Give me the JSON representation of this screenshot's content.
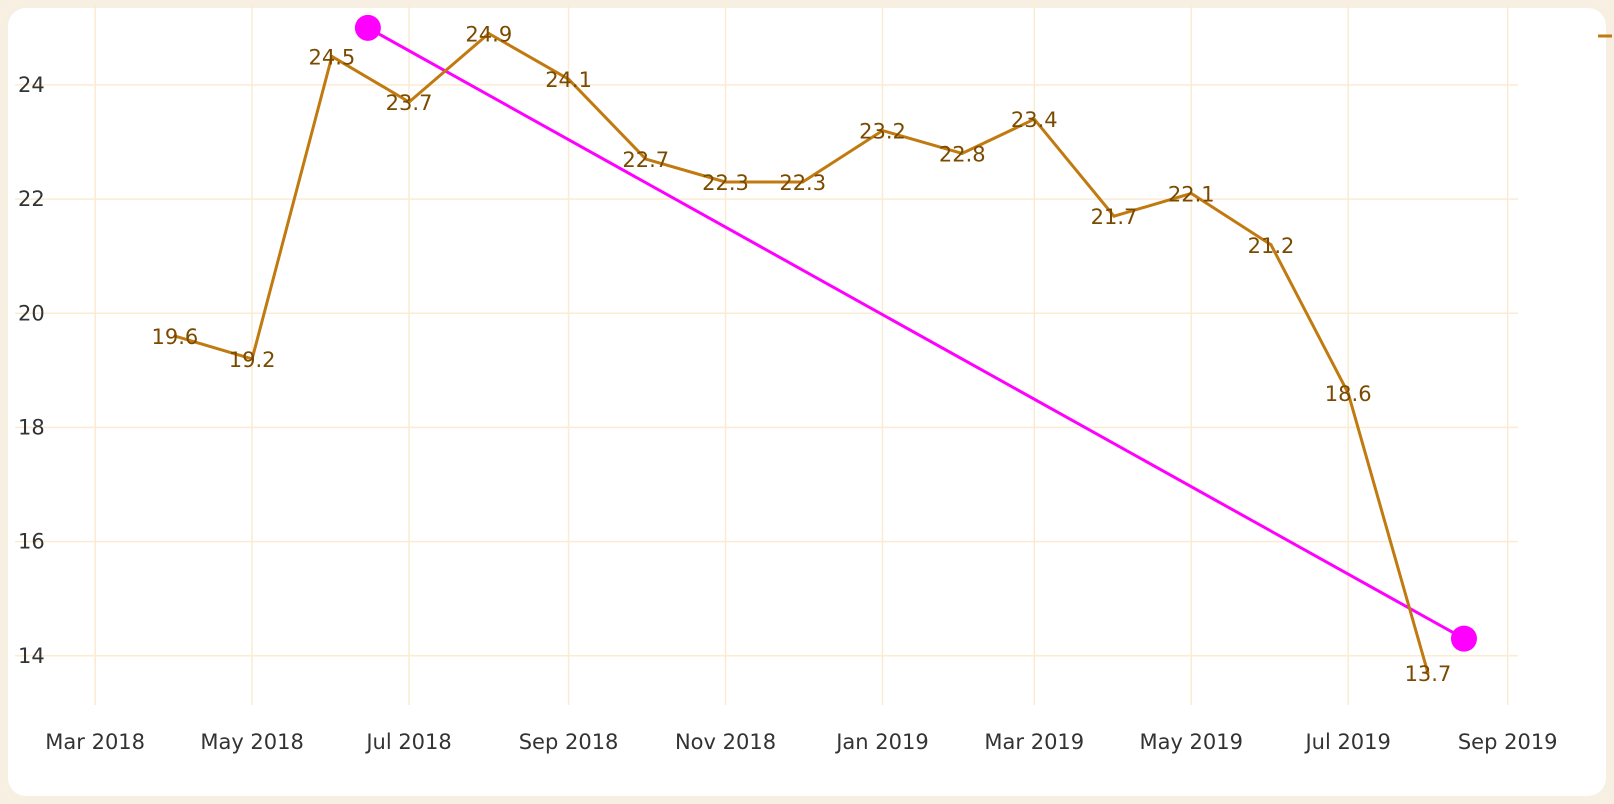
{
  "chart_data": {
    "type": "line",
    "title": "",
    "xlabel": "",
    "ylabel": "",
    "x_tick_labels": [
      "Mar 2018",
      "May 2018",
      "Jul 2018",
      "Sep 2018",
      "Nov 2018",
      "Jan 2019",
      "Mar 2019",
      "May 2019",
      "Jul 2019",
      "Sep 2019"
    ],
    "y_ticks": [
      14,
      16,
      18,
      20,
      22,
      24
    ],
    "ylim": [
      13.4,
      25.4
    ],
    "xlim": [
      "2018-02-20",
      "2019-09-05"
    ],
    "grid": true,
    "legend": "top-right (partially cut off)",
    "series": [
      {
        "color": "#c07a10",
        "x": [
          "2018-04-01",
          "2018-05-01",
          "2018-06-01",
          "2018-07-01",
          "2018-08-01",
          "2018-09-01",
          "2018-10-01",
          "2018-11-01",
          "2018-12-01",
          "2019-01-01",
          "2019-02-01",
          "2019-03-01",
          "2019-04-01",
          "2019-05-01",
          "2019-06-01",
          "2019-07-01",
          "2019-08-01"
        ],
        "values": [
          19.6,
          19.2,
          24.5,
          23.7,
          24.9,
          24.1,
          22.7,
          22.3,
          22.3,
          23.2,
          22.8,
          23.4,
          21.7,
          22.1,
          21.2,
          18.6,
          13.7
        ],
        "labels": [
          "19.6",
          "19.2",
          "24.5",
          "23.7",
          "24.9",
          "24.1",
          "22.7",
          "22.3",
          "22.3",
          "23.2",
          "22.8",
          "23.4",
          "21.7",
          "22.1",
          "21.2",
          "18.6",
          "13.7"
        ]
      }
    ],
    "annotation": {
      "color": "#ff00ff",
      "from": {
        "x": "2018-06-15",
        "y": 25.0
      },
      "to": {
        "x": "2019-08-15",
        "y": 14.3
      }
    }
  }
}
